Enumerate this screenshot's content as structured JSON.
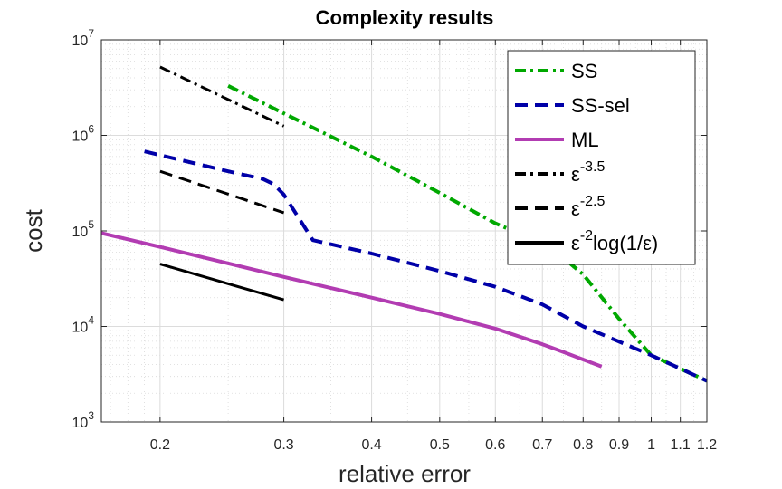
{
  "chart_data": {
    "type": "line",
    "title": "Complexity results",
    "xlabel": "relative error",
    "ylabel": "cost",
    "xscale": "log",
    "yscale": "log",
    "xlim": [
      0.165,
      1.2
    ],
    "ylim": [
      1000,
      10000000
    ],
    "grid": true,
    "legend_position": "top-right",
    "x_ticks": [
      0.2,
      0.3,
      0.4,
      0.5,
      0.6,
      0.7,
      0.8,
      0.9,
      1,
      1.1,
      1.2
    ],
    "x_tick_labels": [
      "0.2",
      "0.3",
      "0.4",
      "0.5",
      "0.6",
      "0.7",
      "0.8",
      "0.9",
      "1",
      "1.1",
      "1.2"
    ],
    "y_ticks": [
      {
        "value": 1000,
        "base": "10",
        "exp": "3"
      },
      {
        "value": 10000,
        "base": "10",
        "exp": "4"
      },
      {
        "value": 100000,
        "base": "10",
        "exp": "5"
      },
      {
        "value": 1000000,
        "base": "10",
        "exp": "6"
      },
      {
        "value": 10000000,
        "base": "10",
        "exp": "7"
      }
    ],
    "series": [
      {
        "name": "SS",
        "color": "#00a800",
        "style": "dashdot",
        "x": [
          0.25,
          0.3,
          0.4,
          0.5,
          0.6,
          0.65,
          0.7,
          0.8,
          0.9,
          1.0,
          1.2
        ],
        "y": [
          3300000,
          1700000,
          600000,
          250000,
          120000,
          93000,
          80000,
          35000,
          12000,
          5000,
          2700
        ]
      },
      {
        "name": "SS-sel",
        "color": "#0000a8",
        "style": "dash",
        "x": [
          0.19,
          0.25,
          0.28,
          0.29,
          0.3,
          0.33,
          0.4,
          0.5,
          0.6,
          0.7,
          0.8,
          1.0,
          1.2
        ],
        "y": [
          680000,
          420000,
          350000,
          310000,
          240000,
          80000,
          58000,
          38000,
          26000,
          17000,
          10000,
          5000,
          2700
        ]
      },
      {
        "name": "ML",
        "color": "#b23cb2",
        "style": "solid",
        "x": [
          0.165,
          0.2,
          0.3,
          0.4,
          0.5,
          0.6,
          0.7,
          0.75,
          0.85
        ],
        "y": [
          95000,
          68000,
          33000,
          20000,
          13500,
          9500,
          6500,
          5400,
          3800
        ]
      }
    ],
    "reference_lines": [
      {
        "label_base": "ε",
        "label_exp": "-3.5",
        "label_suffix": "",
        "style": "dashdot",
        "color": "#000000",
        "x": [
          0.2,
          0.3
        ],
        "y": [
          5200000,
          1250000
        ]
      },
      {
        "label_base": "ε",
        "label_exp": "-2.5",
        "label_suffix": "",
        "style": "dash",
        "color": "#000000",
        "x": [
          0.2,
          0.3
        ],
        "y": [
          420000,
          155000
        ]
      },
      {
        "label_base": "ε",
        "label_exp": "-2",
        "label_suffix": "log(1/ε)",
        "style": "solid",
        "color": "#000000",
        "x": [
          0.2,
          0.3
        ],
        "y": [
          45000,
          19000
        ]
      }
    ]
  }
}
